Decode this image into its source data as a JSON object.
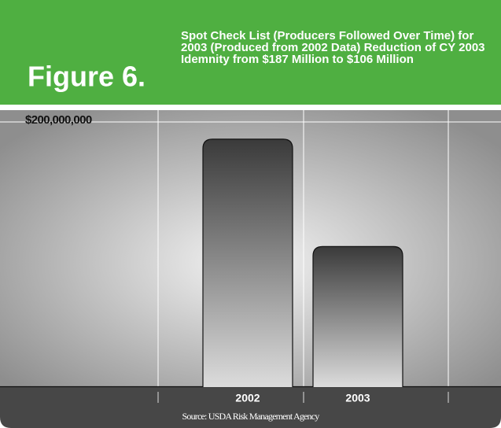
{
  "chart_data": {
    "type": "bar",
    "figure_label": "Figure 6.",
    "title": "Spot Check List (Producers Followed Over Time) for 2003 (Produced from 2002 Data) Reduction of CY 2003 Idemnity from $187 Million to $106 Million",
    "categories": [
      "2002",
      "2003"
    ],
    "values": [
      187000000,
      106000000
    ],
    "ylim": [
      0,
      200000000
    ],
    "yticks": [
      {
        "value": 200000000,
        "label": "$200,000,000"
      }
    ],
    "grid": true,
    "source": "Source: USDA Risk Management Agency"
  }
}
